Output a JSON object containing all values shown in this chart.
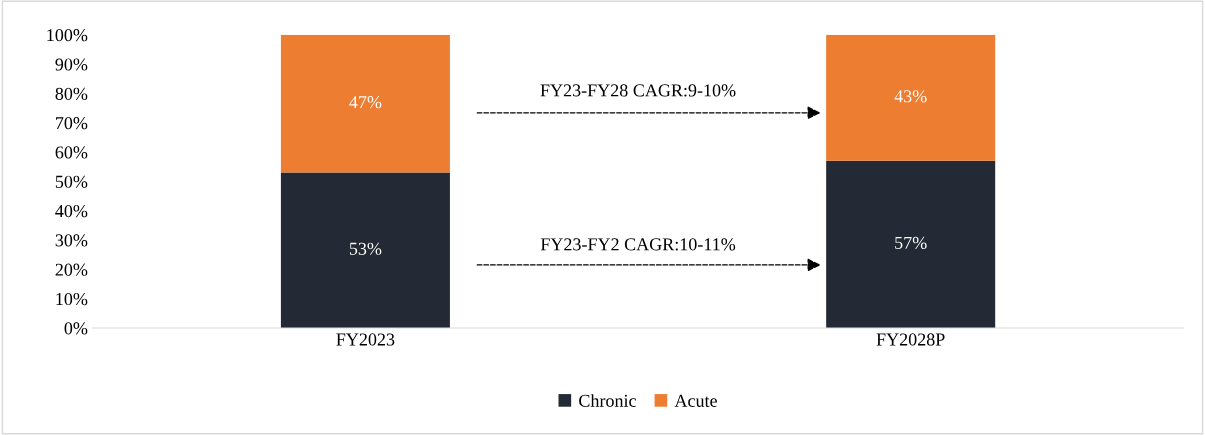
{
  "chart_data": {
    "type": "bar",
    "stacked": true,
    "categories": [
      "FY2023",
      "FY2028P"
    ],
    "series": [
      {
        "name": "Chronic",
        "color": "#232a35",
        "values": [
          53,
          57
        ],
        "value_labels": [
          "53%",
          "57%"
        ]
      },
      {
        "name": "Acute",
        "color": "#ed7d31",
        "values": [
          47,
          43
        ],
        "value_labels": [
          "47%",
          "43%"
        ]
      }
    ],
    "ylim": [
      0,
      100
    ],
    "yticks": [
      {
        "value": 0,
        "label": "0%"
      },
      {
        "value": 10,
        "label": "10%"
      },
      {
        "value": 20,
        "label": "20%"
      },
      {
        "value": 30,
        "label": "30%"
      },
      {
        "value": 40,
        "label": "40%"
      },
      {
        "value": 50,
        "label": "50%"
      },
      {
        "value": 60,
        "label": "60%"
      },
      {
        "value": 70,
        "label": "70%"
      },
      {
        "value": 80,
        "label": "80%"
      },
      {
        "value": 90,
        "label": "90%"
      },
      {
        "value": 100,
        "label": "100%"
      }
    ],
    "annotations": [
      "FY23-FY28 CAGR:9-10%",
      "FY23-FY2 CAGR:10-11%"
    ],
    "grid": false,
    "legend": "bottom"
  }
}
